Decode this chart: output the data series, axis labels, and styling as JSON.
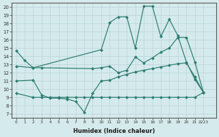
{
  "xlabel": "Humidex (Indice chaleur)",
  "xlim": [
    -0.5,
    23.5
  ],
  "ylim": [
    6.5,
    20.5
  ],
  "yticks": [
    7,
    8,
    9,
    10,
    11,
    12,
    13,
    14,
    15,
    16,
    17,
    18,
    19,
    20
  ],
  "xtick_positions": [
    0,
    1,
    2,
    3,
    4,
    5,
    6,
    7,
    8,
    9,
    10,
    11,
    12,
    13,
    14,
    15,
    16,
    17,
    18,
    19,
    20,
    21,
    22
  ],
  "xtick_labels": [
    "0",
    "1",
    "2",
    "3",
    "4",
    "5",
    "6",
    "7",
    "8",
    "9",
    "10",
    "11",
    "12",
    "13",
    "14",
    "15",
    "16",
    "17",
    "18",
    "19",
    "20",
    "21",
    "2223"
  ],
  "bg_color": "#d5eaec",
  "line_color": "#2e7d72",
  "grid_color": "#b8d4d7",
  "line1_x": [
    0,
    1,
    2,
    10,
    11,
    12,
    13,
    14,
    15,
    16,
    17,
    18,
    19,
    20,
    21,
    22
  ],
  "line1_y": [
    14.7,
    13.5,
    12.6,
    14.8,
    18.1,
    18.8,
    18.8,
    15.0,
    20.1,
    20.1,
    16.4,
    18.5,
    16.5,
    13.3,
    11.2,
    9.6
  ],
  "line2_x": [
    0,
    2,
    3,
    9,
    10,
    11,
    12,
    13,
    14,
    15,
    16,
    17,
    18,
    19,
    20,
    21,
    22
  ],
  "line2_y": [
    12.8,
    12.6,
    12.6,
    12.5,
    12.6,
    12.8,
    12.0,
    12.3,
    13.9,
    13.2,
    13.8,
    14.5,
    15.0,
    16.3,
    16.3,
    13.3,
    9.6
  ],
  "line3_x": [
    0,
    2,
    3,
    4,
    5,
    6,
    7,
    8,
    9,
    10,
    11,
    12,
    13,
    14,
    15,
    16,
    17,
    18,
    19,
    20,
    21,
    22
  ],
  "line3_y": [
    11.0,
    11.1,
    9.3,
    8.9,
    8.9,
    8.8,
    8.5,
    7.2,
    9.5,
    11.0,
    11.1,
    11.5,
    11.8,
    12.1,
    12.3,
    12.5,
    12.7,
    12.9,
    13.1,
    13.2,
    11.5,
    9.6
  ],
  "line4_x": [
    0,
    2,
    3,
    4,
    5,
    6,
    7,
    8,
    9,
    10,
    11,
    12,
    13,
    14,
    15,
    16,
    17,
    18,
    19,
    20,
    21,
    22
  ],
  "line4_y": [
    9.5,
    9.0,
    9.0,
    9.0,
    9.0,
    9.0,
    9.0,
    9.0,
    9.0,
    9.0,
    9.0,
    9.0,
    9.0,
    9.0,
    9.0,
    9.0,
    9.0,
    9.0,
    9.0,
    9.0,
    9.0,
    9.6
  ]
}
